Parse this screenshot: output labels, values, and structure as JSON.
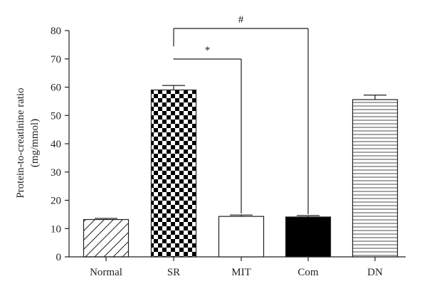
{
  "chart_data": {
    "type": "bar",
    "categories": [
      "Normal",
      "SR",
      "MIT",
      "Com",
      "DN"
    ],
    "values": [
      13.2,
      59.0,
      14.3,
      14.1,
      55.6
    ],
    "errors": [
      0.4,
      1.6,
      0.5,
      0.5,
      1.6
    ],
    "patterns": [
      "diagonal-hatch",
      "checkerboard",
      "white",
      "black",
      "horizontal-lines"
    ],
    "ylabel_line1": "Protein-to-creatinine ratio",
    "ylabel_line2": "(mg/mmol)",
    "xlabel": "",
    "title": "",
    "ylim": [
      0,
      80
    ],
    "yticks": [
      0,
      10,
      20,
      30,
      40,
      50,
      60,
      70,
      80
    ],
    "grid": false,
    "colors": {
      "axis": "#231f20",
      "fill_dark": "#000000",
      "fill_light": "#ffffff"
    },
    "annotations": [
      {
        "label": "*",
        "from": "SR",
        "to": "MIT"
      },
      {
        "label": "#",
        "from": "SR",
        "to": "Com"
      }
    ]
  }
}
